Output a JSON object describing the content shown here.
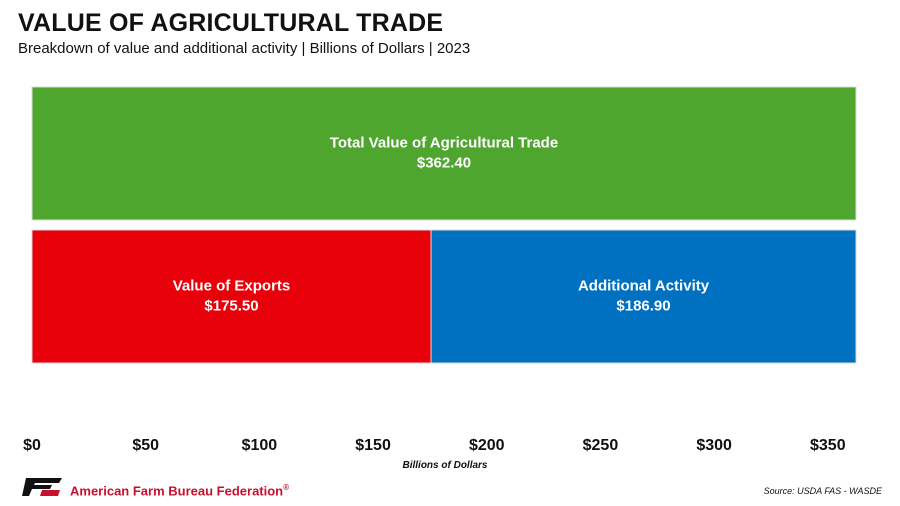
{
  "header": {
    "title": "VALUE OF AGRICULTURAL TRADE",
    "subtitle": "Breakdown of value and additional activity | Billions of Dollars | 2023"
  },
  "footer": {
    "organization": "American Farm Bureau Federation",
    "organization_mark": "®",
    "source": "Source: USDA FAS - WASDE",
    "logo_letters": "FB"
  },
  "colors": {
    "total": "#4fa62f",
    "exports": "#e8000b",
    "additional": "#0070c0"
  },
  "chart_data": {
    "type": "bar",
    "orientation": "horizontal",
    "xlabel": "Billions of Dollars",
    "xlim": [
      0,
      362.4
    ],
    "xticks": [
      0,
      50,
      100,
      150,
      200,
      250,
      300,
      350
    ],
    "xtick_labels": [
      "$0",
      "$50",
      "$100",
      "$150",
      "$200",
      "$250",
      "$300",
      "$350"
    ],
    "grid": false,
    "rows": [
      {
        "segments": [
          {
            "name": "Total Value of Agricultural Trade",
            "value": 362.4,
            "value_label": "$362.40",
            "color": "#4fa62f"
          }
        ]
      },
      {
        "segments": [
          {
            "name": "Value of Exports",
            "value": 175.5,
            "value_label": "$175.50",
            "color": "#e8000b"
          },
          {
            "name": "Additional Activity",
            "value": 186.9,
            "value_label": "$186.90",
            "color": "#0070c0"
          }
        ]
      }
    ]
  }
}
